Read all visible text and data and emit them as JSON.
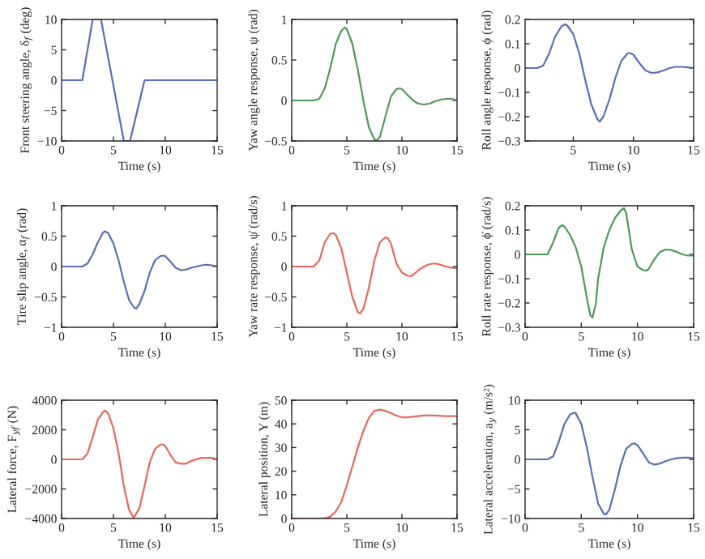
{
  "chart_data": [
    {
      "type": "line",
      "xlabel": "Time (s)",
      "ylabel": "Front steering angle, δ$_{f}$ (deg)",
      "xlim": [
        0,
        15
      ],
      "xticks": [
        0,
        5,
        10,
        15
      ],
      "ylim": [
        -10,
        10
      ],
      "yticks": [
        -10,
        -5,
        0,
        5,
        10
      ],
      "x": [
        0,
        2,
        3,
        3.8,
        6,
        6.6,
        8,
        15
      ],
      "series": [
        {
          "color": "#5a6fb5",
          "values": [
            0,
            0,
            10,
            10,
            -10,
            -10,
            0,
            0
          ]
        }
      ]
    },
    {
      "type": "line",
      "xlabel": "Time (s)",
      "ylabel": "Yaw angle response, ψ (rad)",
      "xlim": [
        0,
        15
      ],
      "xticks": [
        0,
        5,
        10,
        15
      ],
      "ylim": [
        -0.5,
        1
      ],
      "yticks": [
        -0.5,
        0,
        0.5,
        1
      ],
      "x": [
        0,
        2,
        2.5,
        3,
        3.5,
        4,
        4.5,
        4.8,
        5,
        5.5,
        6,
        6.5,
        7,
        7.5,
        7.7,
        8,
        8.5,
        9,
        9.5,
        9.8,
        10,
        10.5,
        11,
        11.5,
        12,
        12.5,
        13,
        13.5,
        14,
        14.5,
        15
      ],
      "series": [
        {
          "color": "#4f9a5a",
          "values": [
            0,
            0,
            0.02,
            0.15,
            0.4,
            0.7,
            0.86,
            0.9,
            0.88,
            0.7,
            0.38,
            0.0,
            -0.33,
            -0.48,
            -0.5,
            -0.45,
            -0.2,
            0.05,
            0.14,
            0.15,
            0.14,
            0.07,
            0.0,
            -0.04,
            -0.05,
            -0.04,
            -0.01,
            0.01,
            0.02,
            0.02,
            0.0
          ]
        }
      ]
    },
    {
      "type": "line",
      "xlabel": "Time (s)",
      "ylabel": "Roll angle response, ϕ (rad)",
      "xlim": [
        1,
        15
      ],
      "xticks": [
        5,
        10,
        15
      ],
      "ylim": [
        -0.3,
        0.2
      ],
      "yticks": [
        -0.3,
        -0.2,
        -0.1,
        0,
        0.1,
        0.2
      ],
      "x": [
        1,
        2,
        2.5,
        3,
        3.5,
        4,
        4.3,
        4.5,
        5,
        5.5,
        6,
        6.5,
        7,
        7.2,
        7.5,
        8,
        8.5,
        9,
        9.5,
        9.7,
        10,
        10.5,
        11,
        11.5,
        12,
        12.5,
        13,
        13.5,
        14,
        14.5,
        15
      ],
      "series": [
        {
          "color": "#5a6fb5",
          "values": [
            0,
            0,
            0.01,
            0.06,
            0.13,
            0.17,
            0.18,
            0.175,
            0.14,
            0.06,
            -0.05,
            -0.15,
            -0.21,
            -0.22,
            -0.2,
            -0.13,
            -0.04,
            0.03,
            0.06,
            0.062,
            0.055,
            0.02,
            -0.01,
            -0.02,
            -0.018,
            -0.01,
            0.0,
            0.005,
            0.005,
            0.003,
            0.0
          ]
        }
      ]
    },
    {
      "type": "line",
      "xlabel": "Time (s)",
      "ylabel": "Tire slip angle, α$_{f}$ (rad)",
      "xlim": [
        0,
        15
      ],
      "xticks": [
        0,
        5,
        10,
        15
      ],
      "ylim": [
        -1,
        1
      ],
      "yticks": [
        -1,
        -0.5,
        0,
        0.5,
        1
      ],
      "x": [
        0,
        2,
        2.5,
        3,
        3.5,
        4,
        4.2,
        4.5,
        5,
        5.5,
        6,
        6.5,
        7,
        7.2,
        7.5,
        8,
        8.5,
        9,
        9.5,
        9.8,
        10,
        10.5,
        11,
        11.5,
        12,
        12.5,
        13,
        13.5,
        14,
        14.5,
        15
      ],
      "series": [
        {
          "color": "#5a6fb5",
          "values": [
            0,
            0,
            0.05,
            0.2,
            0.4,
            0.56,
            0.58,
            0.55,
            0.38,
            0.1,
            -0.25,
            -0.55,
            -0.68,
            -0.69,
            -0.62,
            -0.4,
            -0.1,
            0.1,
            0.17,
            0.18,
            0.17,
            0.08,
            -0.02,
            -0.06,
            -0.05,
            -0.02,
            0.0,
            0.02,
            0.03,
            0.02,
            0.0
          ]
        }
      ]
    },
    {
      "type": "line",
      "xlabel": "Time (s)",
      "ylabel": "Yaw rate response, ψ̇ (rad/s)",
      "xlim": [
        0,
        15
      ],
      "xticks": [
        0,
        5,
        10,
        15
      ],
      "ylim": [
        -1,
        1
      ],
      "yticks": [
        -1,
        -0.5,
        0,
        0.5,
        1
      ],
      "x": [
        0,
        2,
        2.5,
        3,
        3.5,
        3.8,
        4,
        4.5,
        5,
        5.5,
        6,
        6.2,
        6.5,
        7,
        7.5,
        8,
        8.5,
        8.7,
        9,
        9.5,
        10,
        10.5,
        10.8,
        11,
        11.5,
        12,
        12.5,
        13,
        13.5,
        14,
        14.5,
        15
      ],
      "series": [
        {
          "color": "#e8685a",
          "values": [
            0,
            0,
            0.1,
            0.4,
            0.54,
            0.55,
            0.52,
            0.3,
            -0.1,
            -0.5,
            -0.75,
            -0.77,
            -0.7,
            -0.35,
            0.1,
            0.4,
            0.48,
            0.47,
            0.38,
            0.05,
            -0.1,
            -0.15,
            -0.16,
            -0.14,
            -0.06,
            0.0,
            0.04,
            0.05,
            0.03,
            0.0,
            -0.02,
            -0.03
          ]
        }
      ]
    },
    {
      "type": "line",
      "xlabel": "Time (s)",
      "ylabel": "Roll rate response, ϕ̇ (rad/s)",
      "xlim": [
        0,
        15
      ],
      "xticks": [
        0,
        5,
        10,
        15
      ],
      "ylim": [
        -0.3,
        0.2
      ],
      "yticks": [
        -0.3,
        -0.2,
        -0.1,
        0,
        0.1,
        0.2
      ],
      "x": [
        0,
        2,
        2.5,
        3,
        3.3,
        3.5,
        4,
        4.5,
        5,
        5.5,
        5.8,
        6,
        6.3,
        6.5,
        7,
        7.5,
        8,
        8.5,
        8.8,
        9,
        9.5,
        10,
        10.5,
        10.8,
        11,
        11.5,
        12,
        12.5,
        13,
        13.5,
        14,
        14.5,
        15
      ],
      "series": [
        {
          "color": "#4f9a5a",
          "values": [
            0,
            0,
            0.05,
            0.11,
            0.12,
            0.115,
            0.08,
            0.03,
            -0.05,
            -0.18,
            -0.25,
            -0.26,
            -0.2,
            -0.1,
            0.03,
            0.1,
            0.15,
            0.18,
            0.19,
            0.17,
            0.02,
            -0.05,
            -0.065,
            -0.067,
            -0.06,
            -0.02,
            0.01,
            0.02,
            0.018,
            0.01,
            0.0,
            -0.005,
            -0.005
          ]
        }
      ]
    },
    {
      "type": "line",
      "xlabel": "Time (s)",
      "ylabel": "Lateral force, F$_{yf}$ (N)",
      "xlim": [
        0,
        15
      ],
      "xticks": [
        0,
        5,
        10,
        15
      ],
      "ylim": [
        -4000,
        4000
      ],
      "yticks": [
        -4000,
        -2000,
        0,
        2000,
        4000
      ],
      "x": [
        0,
        2,
        2.5,
        3,
        3.5,
        4,
        4.2,
        4.5,
        5,
        5.5,
        6,
        6.5,
        6.9,
        7,
        7.5,
        8,
        8.5,
        9,
        9.5,
        9.8,
        10,
        10.5,
        11,
        11.5,
        12,
        12.5,
        13,
        13.5,
        14,
        14.5,
        15
      ],
      "series": [
        {
          "color": "#e8685a",
          "values": [
            0,
            0,
            400,
            1500,
            2700,
            3200,
            3300,
            3100,
            2100,
            400,
            -1800,
            -3400,
            -3900,
            -3900,
            -3300,
            -1800,
            -200,
            700,
            1000,
            1000,
            900,
            300,
            -200,
            -300,
            -300,
            -100,
            0,
            100,
            100,
            100,
            0
          ]
        }
      ]
    },
    {
      "type": "line",
      "xlabel": "Time (s)",
      "ylabel": "Lateral position, Y (m)",
      "xlim": [
        0,
        15
      ],
      "xticks": [
        0,
        5,
        10,
        15
      ],
      "ylim": [
        0,
        50
      ],
      "yticks": [
        0,
        10,
        20,
        30,
        40,
        50
      ],
      "x": [
        0,
        2,
        2.5,
        3,
        3.5,
        4,
        4.5,
        5,
        5.5,
        6,
        6.5,
        7,
        7.5,
        8,
        8.5,
        9,
        9.5,
        10,
        10.5,
        11,
        11.5,
        12,
        13,
        14,
        15
      ],
      "series": [
        {
          "color": "#e8685a",
          "values": [
            0,
            0,
            0,
            0.1,
            0.8,
            3,
            7,
            14,
            22,
            30,
            37,
            42.5,
            45.5,
            46,
            45.5,
            44.5,
            43.5,
            42.8,
            42.8,
            43,
            43.3,
            43.5,
            43.5,
            43.3,
            43.3
          ]
        }
      ]
    },
    {
      "type": "line",
      "xlabel": "Time (s)",
      "ylabel": "Lateral acceleration, a$_{y}$ (m/s²)",
      "xlim": [
        0,
        15
      ],
      "xticks": [
        0,
        5,
        10,
        15
      ],
      "ylim": [
        -10,
        10
      ],
      "yticks": [
        -10,
        -5,
        0,
        5,
        10
      ],
      "x": [
        0,
        2,
        2.5,
        3,
        3.5,
        4,
        4.4,
        4.5,
        5,
        5.5,
        6,
        6.5,
        7,
        7.2,
        7.5,
        8,
        8.5,
        9,
        9.5,
        9.7,
        10,
        10.5,
        11,
        11.5,
        12,
        12.5,
        13,
        13.5,
        14,
        14.5,
        15
      ],
      "series": [
        {
          "color": "#5a6fb5",
          "values": [
            0,
            0,
            0.5,
            3,
            6,
            7.6,
            7.9,
            7.8,
            6,
            2,
            -3,
            -7.5,
            -9.2,
            -9.3,
            -8.5,
            -5,
            -1,
            1.8,
            2.6,
            2.7,
            2.4,
            1,
            -0.5,
            -0.9,
            -0.7,
            -0.3,
            0,
            0.2,
            0.3,
            0.3,
            0.2
          ]
        }
      ]
    }
  ]
}
